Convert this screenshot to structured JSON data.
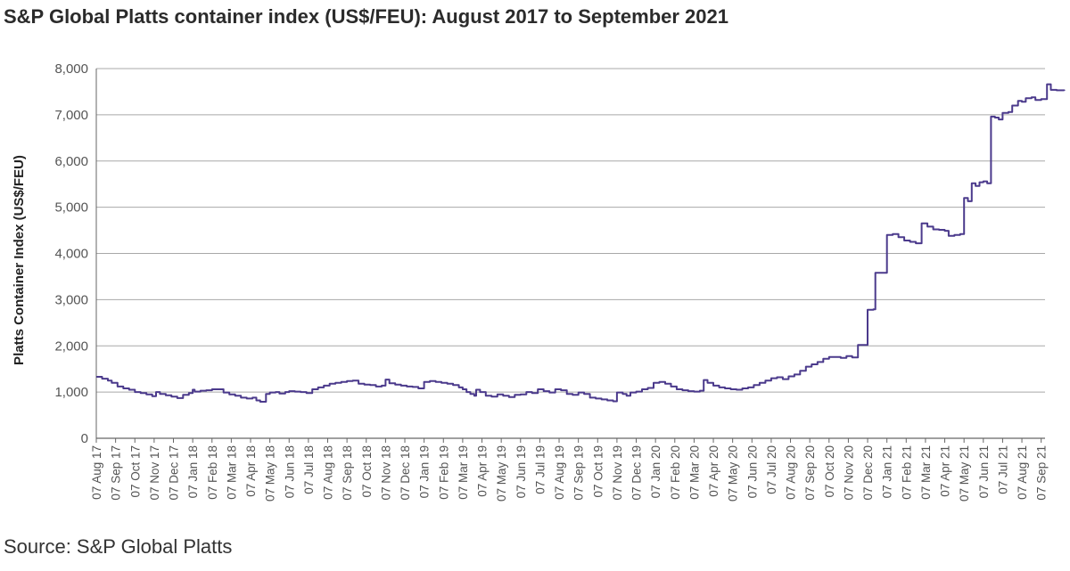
{
  "title": "S&P Global Platts container index (US$/FEU): August 2017 to September 2021",
  "source": "Source: S&P Global Platts",
  "colors": {
    "line": "#4b3a8c",
    "grid": "#a8a8a8",
    "axis": "#666666"
  },
  "chart_data": {
    "type": "line",
    "title": "S&P Global Platts container index (US$/FEU): August 2017 to September 2021",
    "ylabel": "Platts Container Index (US$/FEU)",
    "xlabel": "",
    "ylim": [
      0,
      8000
    ],
    "yticks": [
      0,
      1000,
      2000,
      3000,
      4000,
      5000,
      6000,
      7000,
      8000
    ],
    "ytick_labels": [
      "0",
      "1,000",
      "2,000",
      "3,000",
      "4,000",
      "5,000",
      "6,000",
      "7,000",
      "8,000"
    ],
    "grid": true,
    "legend": "none",
    "categories": [
      "07 Aug 17",
      "07 Sep 17",
      "07 Oct 17",
      "07 Nov 17",
      "07 Dec 17",
      "07 Jan 18",
      "07 Feb 18",
      "07 Mar 18",
      "07 Apr 18",
      "07 May 18",
      "07 Jun 18",
      "07 Jul 18",
      "07 Aug 18",
      "07 Sep 18",
      "07 Oct 18",
      "07 Nov 18",
      "07 Dec 18",
      "07 Jan 19",
      "07 Feb 19",
      "07 Mar 19",
      "07 Apr 19",
      "07 May 19",
      "07 Jun 19",
      "07 Jul 19",
      "07 Aug 19",
      "07 Sep 19",
      "07 Oct 19",
      "07 Nov 19",
      "07 Dec 19",
      "07 Jan 20",
      "07 Feb 20",
      "07 Mar 20",
      "07 Apr 20",
      "07 May 20",
      "07 Jun 20",
      "07 Jul 20",
      "07 Aug 20",
      "07 Sep 20",
      "07 Oct 20",
      "07 Nov 20",
      "07 Dec 20",
      "07 Jan 21",
      "07 Feb 21",
      "07 Mar 21",
      "07 Apr 21",
      "07 May 21",
      "07 Jun 21",
      "07 Jul 21",
      "07 Aug 21",
      "07 Sep 21"
    ],
    "series": [
      {
        "values": [
          [
            0,
            1330
          ],
          [
            0.3,
            1290
          ],
          [
            0.6,
            1250
          ],
          [
            0.8,
            1200
          ],
          [
            1.1,
            1120
          ],
          [
            1.4,
            1080
          ],
          [
            1.7,
            1050
          ],
          [
            2.0,
            1000
          ],
          [
            2.3,
            980
          ],
          [
            2.6,
            950
          ],
          [
            2.9,
            910
          ],
          [
            3.1,
            1000
          ],
          [
            3.3,
            960
          ],
          [
            3.6,
            930
          ],
          [
            3.9,
            900
          ],
          [
            4.2,
            870
          ],
          [
            4.5,
            940
          ],
          [
            4.8,
            980
          ],
          [
            5.0,
            1050
          ],
          [
            5.1,
            1010
          ],
          [
            5.4,
            1030
          ],
          [
            5.7,
            1040
          ],
          [
            6.0,
            1060
          ],
          [
            6.3,
            1060
          ],
          [
            6.6,
            990
          ],
          [
            6.9,
            950
          ],
          [
            7.2,
            920
          ],
          [
            7.5,
            880
          ],
          [
            7.8,
            860
          ],
          [
            8.1,
            880
          ],
          [
            8.3,
            820
          ],
          [
            8.5,
            790
          ],
          [
            8.7,
            790
          ],
          [
            8.8,
            960
          ],
          [
            9.0,
            990
          ],
          [
            9.3,
            1000
          ],
          [
            9.5,
            970
          ],
          [
            9.8,
            1000
          ],
          [
            10.0,
            1020
          ],
          [
            10.3,
            1010
          ],
          [
            10.6,
            1000
          ],
          [
            10.9,
            980
          ],
          [
            11.2,
            1060
          ],
          [
            11.5,
            1100
          ],
          [
            11.8,
            1140
          ],
          [
            12.1,
            1180
          ],
          [
            12.4,
            1200
          ],
          [
            12.7,
            1220
          ],
          [
            13.0,
            1240
          ],
          [
            13.3,
            1250
          ],
          [
            13.6,
            1180
          ],
          [
            13.9,
            1160
          ],
          [
            14.2,
            1150
          ],
          [
            14.5,
            1120
          ],
          [
            14.8,
            1140
          ],
          [
            15.0,
            1270
          ],
          [
            15.2,
            1190
          ],
          [
            15.5,
            1160
          ],
          [
            15.8,
            1140
          ],
          [
            16.1,
            1120
          ],
          [
            16.4,
            1110
          ],
          [
            16.7,
            1080
          ],
          [
            17.0,
            1220
          ],
          [
            17.3,
            1240
          ],
          [
            17.6,
            1220
          ],
          [
            17.9,
            1200
          ],
          [
            18.2,
            1180
          ],
          [
            18.5,
            1150
          ],
          [
            18.8,
            1100
          ],
          [
            19.0,
            1060
          ],
          [
            19.2,
            1000
          ],
          [
            19.4,
            960
          ],
          [
            19.6,
            920
          ],
          [
            19.7,
            1050
          ],
          [
            19.9,
            1000
          ],
          [
            20.2,
            920
          ],
          [
            20.5,
            900
          ],
          [
            20.8,
            950
          ],
          [
            21.1,
            920
          ],
          [
            21.4,
            890
          ],
          [
            21.7,
            940
          ],
          [
            22.0,
            950
          ],
          [
            22.3,
            1000
          ],
          [
            22.6,
            980
          ],
          [
            22.9,
            1060
          ],
          [
            23.2,
            1020
          ],
          [
            23.5,
            990
          ],
          [
            23.8,
            1060
          ],
          [
            24.1,
            1040
          ],
          [
            24.4,
            960
          ],
          [
            24.7,
            940
          ],
          [
            25.0,
            990
          ],
          [
            25.3,
            960
          ],
          [
            25.6,
            880
          ],
          [
            25.9,
            860
          ],
          [
            26.2,
            840
          ],
          [
            26.5,
            820
          ],
          [
            26.8,
            800
          ],
          [
            27.0,
            990
          ],
          [
            27.3,
            960
          ],
          [
            27.5,
            920
          ],
          [
            27.7,
            990
          ],
          [
            28.0,
            1010
          ],
          [
            28.3,
            1060
          ],
          [
            28.6,
            1090
          ],
          [
            28.9,
            1200
          ],
          [
            29.2,
            1220
          ],
          [
            29.5,
            1180
          ],
          [
            29.8,
            1120
          ],
          [
            30.1,
            1060
          ],
          [
            30.4,
            1040
          ],
          [
            30.7,
            1020
          ],
          [
            31.0,
            1010
          ],
          [
            31.3,
            1030
          ],
          [
            31.5,
            1260
          ],
          [
            31.7,
            1200
          ],
          [
            32.0,
            1140
          ],
          [
            32.3,
            1100
          ],
          [
            32.6,
            1080
          ],
          [
            32.9,
            1060
          ],
          [
            33.2,
            1050
          ],
          [
            33.5,
            1080
          ],
          [
            33.8,
            1100
          ],
          [
            34.1,
            1150
          ],
          [
            34.4,
            1200
          ],
          [
            34.7,
            1250
          ],
          [
            35.0,
            1300
          ],
          [
            35.3,
            1320
          ],
          [
            35.6,
            1280
          ],
          [
            35.9,
            1340
          ],
          [
            36.2,
            1380
          ],
          [
            36.5,
            1460
          ],
          [
            36.8,
            1550
          ],
          [
            37.1,
            1600
          ],
          [
            37.4,
            1650
          ],
          [
            37.7,
            1720
          ],
          [
            38.0,
            1760
          ],
          [
            38.3,
            1760
          ],
          [
            38.6,
            1740
          ],
          [
            38.9,
            1780
          ],
          [
            39.2,
            1750
          ],
          [
            39.5,
            2020
          ],
          [
            39.8,
            2020
          ],
          [
            40.0,
            2780
          ],
          [
            40.3,
            2790
          ],
          [
            40.4,
            3580
          ],
          [
            40.7,
            3580
          ],
          [
            41.0,
            4400
          ],
          [
            41.3,
            4420
          ],
          [
            41.6,
            4350
          ],
          [
            41.9,
            4280
          ],
          [
            42.2,
            4250
          ],
          [
            42.5,
            4220
          ],
          [
            42.8,
            4650
          ],
          [
            43.1,
            4580
          ],
          [
            43.4,
            4520
          ],
          [
            43.7,
            4510
          ],
          [
            44.0,
            4490
          ],
          [
            44.2,
            4380
          ],
          [
            44.5,
            4400
          ],
          [
            44.8,
            4420
          ],
          [
            45.0,
            5200
          ],
          [
            45.2,
            5130
          ],
          [
            45.4,
            5520
          ],
          [
            45.6,
            5460
          ],
          [
            45.8,
            5540
          ],
          [
            46.0,
            5560
          ],
          [
            46.2,
            5520
          ],
          [
            46.4,
            6960
          ],
          [
            46.6,
            6940
          ],
          [
            46.8,
            6900
          ],
          [
            47.0,
            7040
          ],
          [
            47.3,
            7060
          ],
          [
            47.5,
            7200
          ],
          [
            47.8,
            7300
          ],
          [
            48.0,
            7280
          ],
          [
            48.2,
            7360
          ],
          [
            48.5,
            7380
          ],
          [
            48.7,
            7320
          ],
          [
            49.0,
            7340
          ],
          [
            49.3,
            7660
          ],
          [
            49.5,
            7540
          ],
          [
            49.8,
            7530
          ],
          [
            50.0,
            7530
          ],
          [
            50.2,
            7520
          ]
        ]
      }
    ]
  }
}
